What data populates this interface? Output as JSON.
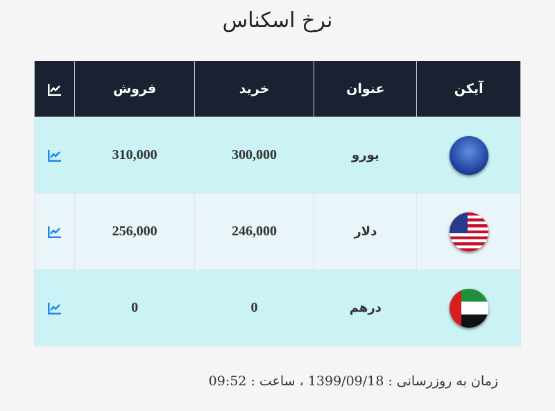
{
  "title": "نرخ اسکناس",
  "headers": {
    "icon": "آیکن",
    "name": "عنوان",
    "buy": "خرید",
    "sell": "فروش",
    "chart_icon": "chart-line-icon"
  },
  "rows": [
    {
      "flag": "eu-flag",
      "name": "یورو",
      "buy": "300,000",
      "sell": "310,000"
    },
    {
      "flag": "us-flag",
      "name": "دلار",
      "buy": "246,000",
      "sell": "256,000"
    },
    {
      "flag": "uae-flag",
      "name": "درهم",
      "buy": "0",
      "sell": "0"
    }
  ],
  "footer": "زمان به روزرسانی : 1399/09/18 ، ساعت : 09:52",
  "colors": {
    "header_bg": "#1a2231",
    "row_cyan": "#cbf3f5",
    "row_light": "#e9f5f8",
    "chart_icon": "#1e88e5"
  }
}
